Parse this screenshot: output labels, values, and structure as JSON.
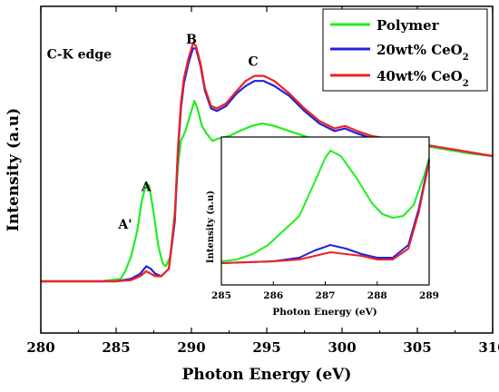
{
  "chart_data": {
    "type": "line",
    "xlabel": "Photon Energy (eV)",
    "ylabel": "Intensity (a.u)",
    "xlim": [
      280,
      310
    ],
    "x_ticks": [
      "280",
      "285",
      "290",
      "295",
      "300",
      "305",
      "310"
    ],
    "y_ticks_labeled": false,
    "grid": false,
    "legend_position": "top-right",
    "annotations": [
      {
        "text": "C-K edge",
        "x": 280.4,
        "y": 93
      },
      {
        "text": "A",
        "x": 287.0,
        "y": 40
      },
      {
        "text": "A'",
        "x": 285.6,
        "y": 25
      },
      {
        "text": "B",
        "x": 290.0,
        "y": 99
      },
      {
        "text": "C",
        "x": 294.1,
        "y": 90
      }
    ],
    "series": [
      {
        "name": "Polymer",
        "color": "#22ee22",
        "points": [
          [
            280,
            4
          ],
          [
            284,
            4
          ],
          [
            285.3,
            5
          ],
          [
            285.6,
            8
          ],
          [
            286.0,
            14
          ],
          [
            286.4,
            24
          ],
          [
            286.7,
            36
          ],
          [
            287.0,
            43
          ],
          [
            287.2,
            42
          ],
          [
            287.5,
            31
          ],
          [
            287.8,
            18
          ],
          [
            288.1,
            11
          ],
          [
            288.3,
            10
          ],
          [
            288.6,
            14
          ],
          [
            288.9,
            32
          ],
          [
            289.1,
            50
          ],
          [
            289.3,
            60
          ],
          [
            289.6,
            64
          ],
          [
            289.9,
            70
          ],
          [
            290.2,
            76
          ],
          [
            290.4,
            73
          ],
          [
            290.7,
            66
          ],
          [
            291.0,
            63
          ],
          [
            291.4,
            60
          ],
          [
            291.8,
            61
          ],
          [
            292.5,
            62
          ],
          [
            293.2,
            64
          ],
          [
            294.0,
            66
          ],
          [
            294.7,
            67
          ],
          [
            295.5,
            66
          ],
          [
            296.5,
            64
          ],
          [
            297.5,
            62
          ],
          [
            298.5,
            60
          ],
          [
            299.5,
            60
          ],
          [
            300.2,
            61
          ],
          [
            301.0,
            60
          ],
          [
            301.8,
            59
          ],
          [
            302.8,
            60
          ],
          [
            303.5,
            60
          ],
          [
            304.5,
            59
          ],
          [
            305.5,
            58
          ],
          [
            306.5,
            57
          ],
          [
            307.5,
            56
          ],
          [
            308.5,
            55
          ],
          [
            310,
            54
          ]
        ]
      },
      {
        "name": "20wt% CeO2",
        "color": "#2222dd",
        "points": [
          [
            280,
            4
          ],
          [
            285,
            4
          ],
          [
            286.0,
            5
          ],
          [
            286.6,
            7
          ],
          [
            287.0,
            10
          ],
          [
            287.3,
            9
          ],
          [
            287.6,
            7
          ],
          [
            288.0,
            6
          ],
          [
            288.5,
            9
          ],
          [
            288.9,
            28
          ],
          [
            289.1,
            55
          ],
          [
            289.3,
            73
          ],
          [
            289.5,
            83
          ],
          [
            289.8,
            91
          ],
          [
            290.1,
            97
          ],
          [
            290.3,
            97
          ],
          [
            290.6,
            90
          ],
          [
            290.9,
            80
          ],
          [
            291.3,
            73
          ],
          [
            291.7,
            72
          ],
          [
            292.3,
            74
          ],
          [
            293.0,
            79
          ],
          [
            293.6,
            82
          ],
          [
            294.2,
            84
          ],
          [
            294.8,
            84
          ],
          [
            295.5,
            82
          ],
          [
            296.5,
            78
          ],
          [
            297.5,
            72
          ],
          [
            298.5,
            67
          ],
          [
            299.5,
            64
          ],
          [
            300.2,
            65
          ],
          [
            301.0,
            63
          ],
          [
            302.0,
            61
          ],
          [
            303.0,
            61
          ],
          [
            304.0,
            60
          ],
          [
            305.0,
            59
          ],
          [
            306.0,
            58
          ],
          [
            307.0,
            57
          ],
          [
            308.0,
            56
          ],
          [
            310,
            54
          ]
        ]
      },
      {
        "name": "40wt% CeO2",
        "color": "#ee2222",
        "points": [
          [
            280,
            4
          ],
          [
            285,
            4
          ],
          [
            286.0,
            4.5
          ],
          [
            286.6,
            6
          ],
          [
            287.0,
            8
          ],
          [
            287.3,
            7
          ],
          [
            287.6,
            6
          ],
          [
            288.0,
            6
          ],
          [
            288.5,
            9
          ],
          [
            288.9,
            30
          ],
          [
            289.1,
            57
          ],
          [
            289.3,
            75
          ],
          [
            289.5,
            85
          ],
          [
            289.8,
            93
          ],
          [
            290.1,
            99
          ],
          [
            290.3,
            98
          ],
          [
            290.6,
            91
          ],
          [
            290.9,
            81
          ],
          [
            291.3,
            74
          ],
          [
            291.7,
            73
          ],
          [
            292.3,
            75
          ],
          [
            293.0,
            80
          ],
          [
            293.6,
            84
          ],
          [
            294.2,
            86
          ],
          [
            294.8,
            86
          ],
          [
            295.5,
            84
          ],
          [
            296.5,
            79
          ],
          [
            297.5,
            73
          ],
          [
            298.5,
            68
          ],
          [
            299.5,
            65
          ],
          [
            300.2,
            66
          ],
          [
            301.0,
            64
          ],
          [
            302.0,
            62
          ],
          [
            303.0,
            61
          ],
          [
            304.0,
            60
          ],
          [
            305.0,
            59
          ],
          [
            306.0,
            58
          ],
          [
            307.0,
            57
          ],
          [
            308.0,
            56
          ],
          [
            310,
            54
          ]
        ]
      }
    ],
    "inset": {
      "xlabel": "Photon Energy (eV)",
      "ylabel": "Intensity (a.u)",
      "xlim": [
        285,
        289
      ],
      "x_ticks": [
        "285",
        "286",
        "287",
        "288",
        "289"
      ],
      "series": [
        {
          "name": "Polymer",
          "color": "#22ee22",
          "points": [
            [
              285.0,
              1
            ],
            [
              285.3,
              2
            ],
            [
              285.6,
              5
            ],
            [
              285.9,
              10
            ],
            [
              286.2,
              18
            ],
            [
              286.5,
              26
            ],
            [
              286.8,
              45
            ],
            [
              287.0,
              58
            ],
            [
              287.1,
              62
            ],
            [
              287.3,
              59
            ],
            [
              287.6,
              47
            ],
            [
              287.9,
              33
            ],
            [
              288.1,
              27
            ],
            [
              288.3,
              25
            ],
            [
              288.5,
              26
            ],
            [
              288.7,
              32
            ],
            [
              288.9,
              48
            ],
            [
              289.0,
              58
            ]
          ]
        },
        {
          "name": "20wt% CeO2",
          "color": "#2222dd",
          "points": [
            [
              285.0,
              0
            ],
            [
              286.0,
              1
            ],
            [
              286.5,
              3
            ],
            [
              286.8,
              7
            ],
            [
              287.1,
              10
            ],
            [
              287.4,
              8
            ],
            [
              287.7,
              5
            ],
            [
              288.0,
              3
            ],
            [
              288.3,
              3
            ],
            [
              288.6,
              10
            ],
            [
              288.8,
              30
            ],
            [
              289.0,
              57
            ]
          ]
        },
        {
          "name": "40wt% CeO2",
          "color": "#ee2222",
          "points": [
            [
              285.0,
              0
            ],
            [
              286.0,
              1
            ],
            [
              286.5,
              2
            ],
            [
              286.8,
              4
            ],
            [
              287.1,
              6
            ],
            [
              287.4,
              5
            ],
            [
              287.7,
              4
            ],
            [
              288.0,
              2
            ],
            [
              288.3,
              2
            ],
            [
              288.6,
              8
            ],
            [
              288.8,
              28
            ],
            [
              289.0,
              56
            ]
          ]
        }
      ]
    }
  }
}
